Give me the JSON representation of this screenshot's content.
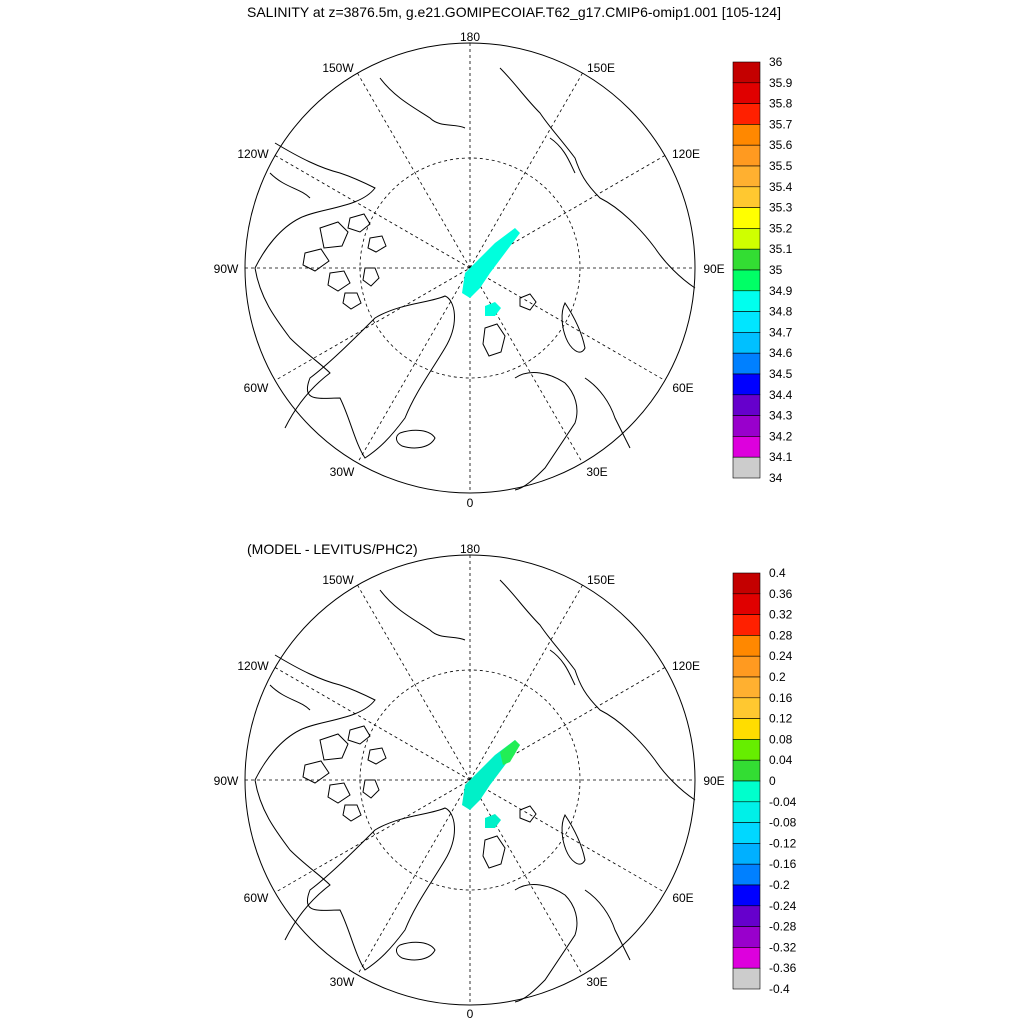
{
  "titles": {
    "main": "SALINITY at z=3876.5m, g.e21.GOMIPECOIAF.T62_g17.CMIP6-omip1.001 [105-124]",
    "diff": "(MODEL - LEVITUS/PHC2)"
  },
  "longitude_labels": [
    "180",
    "150E",
    "120E",
    "90E",
    "60E",
    "30E",
    "0",
    "30W",
    "60W",
    "90W",
    "120W",
    "150W"
  ],
  "colors": {
    "land_outline": "#000000",
    "grid": "#000000",
    "field_34_9": "#00ffdd",
    "field_diff_neg": "#00f0c8",
    "field_diff_pos": "#22ee55"
  },
  "colorbars": {
    "salinity": {
      "labels": [
        "36",
        "35.9",
        "35.8",
        "35.7",
        "35.6",
        "35.5",
        "35.4",
        "35.3",
        "35.2",
        "35.1",
        "35",
        "34.9",
        "34.8",
        "34.7",
        "34.6",
        "34.5",
        "34.4",
        "34.3",
        "34.2",
        "34.1",
        "34"
      ],
      "colors": [
        "#c40000",
        "#e00000",
        "#ff2000",
        "#ff8800",
        "#ff9a20",
        "#ffb030",
        "#ffc830",
        "#ffff00",
        "#cfff00",
        "#33dd33",
        "#00ff66",
        "#00ffee",
        "#00e6ff",
        "#00c0ff",
        "#0080ff",
        "#0000ff",
        "#6600cc",
        "#9900cc",
        "#dd00dd",
        "#cccccc",
        "#777777"
      ]
    },
    "difference": {
      "labels": [
        "0.4",
        "0.36",
        "0.32",
        "0.28",
        "0.24",
        "0.2",
        "0.16",
        "0.12",
        "0.08",
        "0.04",
        "0",
        "-0.04",
        "-0.08",
        "-0.12",
        "-0.16",
        "-0.2",
        "-0.24",
        "-0.28",
        "-0.32",
        "-0.36",
        "-0.4"
      ],
      "colors": [
        "#c40000",
        "#e00000",
        "#ff2000",
        "#ff8800",
        "#ff9a20",
        "#ffb030",
        "#ffc830",
        "#ffdd00",
        "#66ee00",
        "#33dd33",
        "#00ffcc",
        "#00f0e8",
        "#00d8ff",
        "#00b0ff",
        "#0080ff",
        "#0000ff",
        "#6600cc",
        "#9900cc",
        "#dd00dd",
        "#cccccc",
        "#777777"
      ]
    }
  }
}
